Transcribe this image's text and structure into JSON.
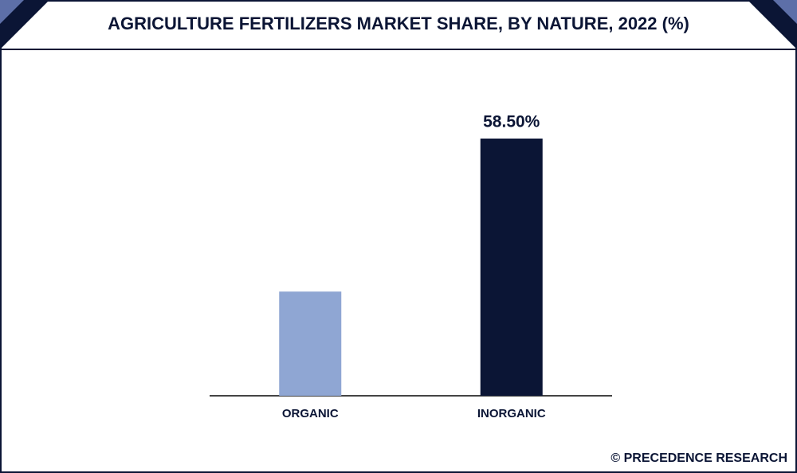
{
  "chart_data": {
    "type": "bar",
    "title": "AGRICULTURE FERTILIZERS MARKET SHARE, BY NATURE, 2022 (%)",
    "categories": [
      "ORGANIC",
      "INORGANIC"
    ],
    "values": [
      23.7,
      58.5
    ],
    "value_labels": [
      null,
      "58.50%"
    ],
    "colors": [
      "#8fa6d3",
      "#0b1535"
    ],
    "source": "© PRECEDENCE RESEARCH"
  }
}
